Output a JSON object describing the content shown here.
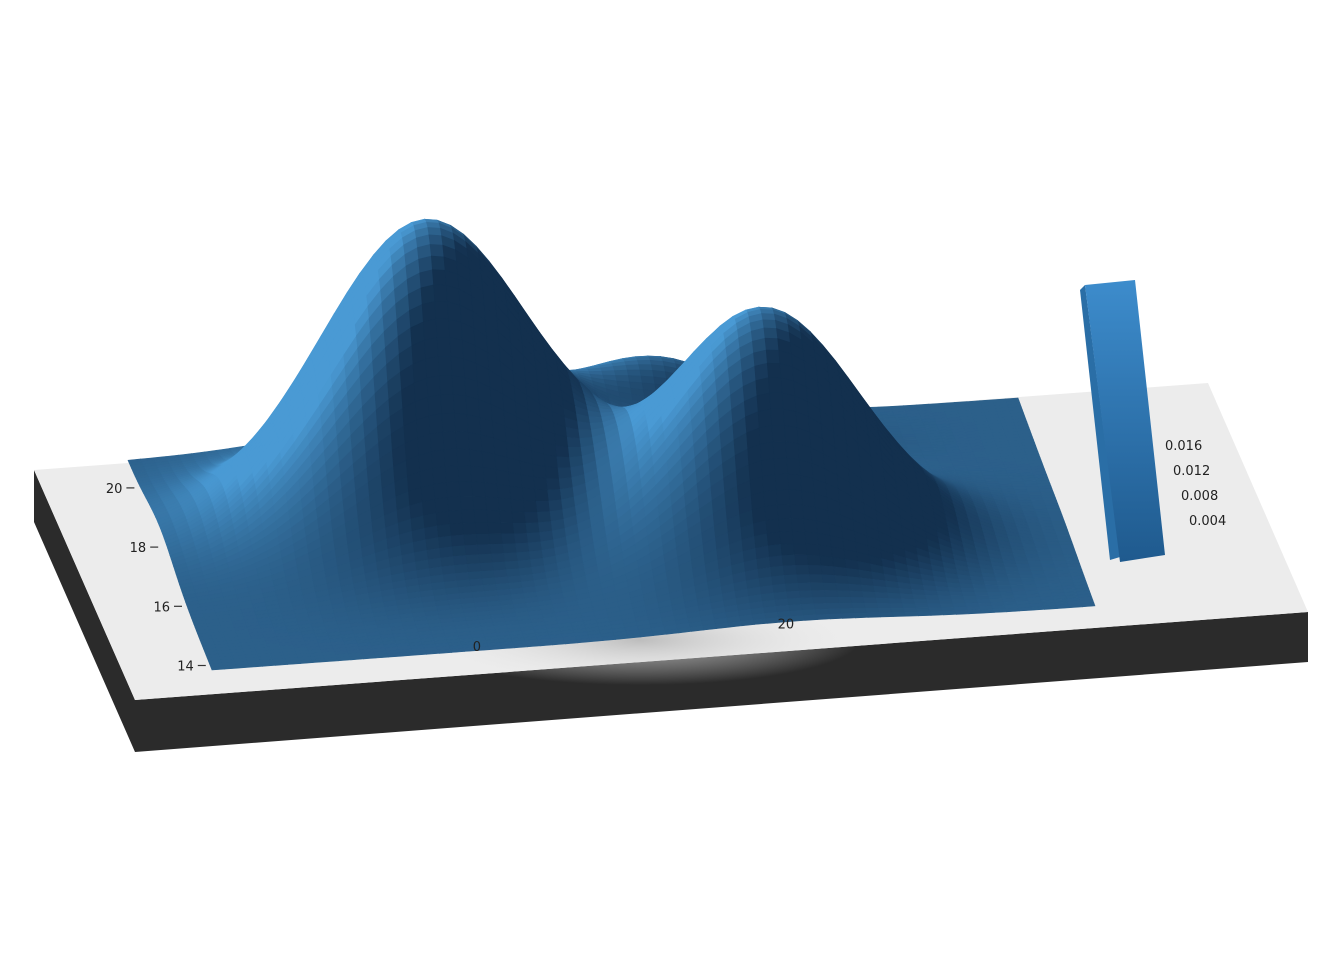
{
  "chart_data": {
    "type": "surface",
    "rendering": "3d-printed heightmap on a slab",
    "surface_function": {
      "base": 0.02,
      "peaks": [
        {
          "x": 0.3,
          "y": 0.62,
          "height": 1.0,
          "sx": 0.12,
          "sy": 0.16
        },
        {
          "x": 0.66,
          "y": 0.4,
          "height": 0.78,
          "sx": 0.11,
          "sy": 0.15
        },
        {
          "x": 0.58,
          "y": 0.85,
          "height": 0.3,
          "sx": 0.1,
          "sy": 0.1
        }
      ]
    },
    "x_ticks": [
      "0",
      "20"
    ],
    "y_ticks": [
      "14",
      "16",
      "18",
      "20"
    ],
    "x_axis_title": "",
    "colorbar": {
      "ticks": [
        "0.016",
        "0.012",
        "0.008",
        "0.004"
      ],
      "colormap": [
        "#14304f",
        "#1e5484",
        "#2a7ab8",
        "#4a9ad4"
      ]
    },
    "colors": {
      "slab_top": "#ececec",
      "slab_side": "#2b2b2b",
      "surface_dark": "#13304e",
      "surface_light": "#4a9ad4"
    }
  }
}
